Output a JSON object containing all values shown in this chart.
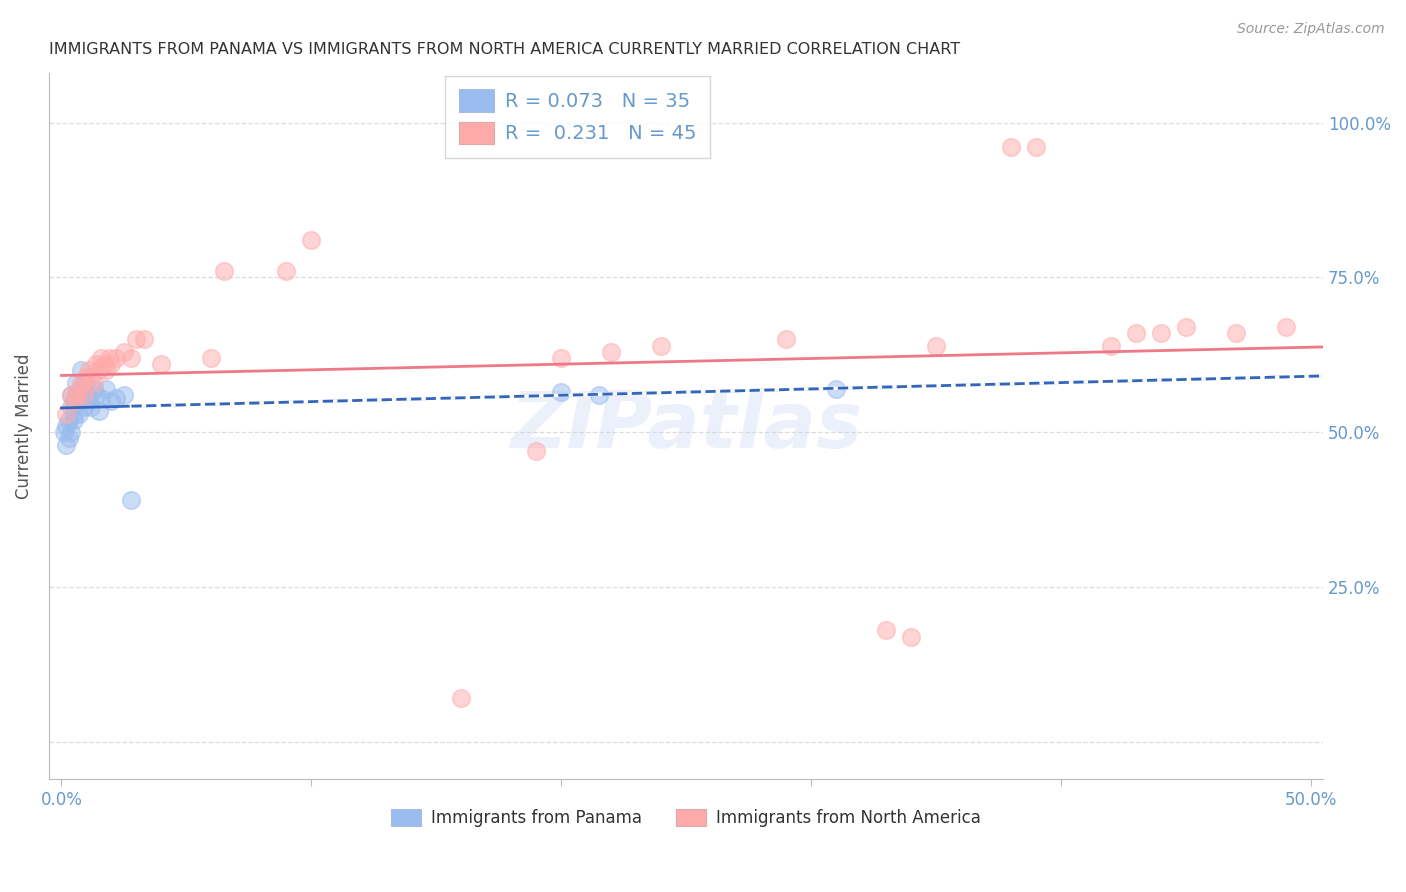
{
  "title": "IMMIGRANTS FROM PANAMA VS IMMIGRANTS FROM NORTH AMERICA CURRENTLY MARRIED CORRELATION CHART",
  "source": "Source: ZipAtlas.com",
  "ylabel_left": "Currently Married",
  "legend_r1": "0.073",
  "legend_n1": "35",
  "legend_r2": "0.231",
  "legend_n2": "45",
  "blue_color": "#99BBEE",
  "pink_color": "#FFAAAA",
  "blue_line_color": "#3366BB",
  "pink_line_color": "#EE7788",
  "axis_color": "#6699CC",
  "title_color": "#333333",
  "grid_color": "#DDDDDD",
  "background_color": "#FFFFFF",
  "watermark": "ZIPatlas",
  "blue_x": [
    0.001,
    0.002,
    0.002,
    0.003,
    0.003,
    0.004,
    0.004,
    0.004,
    0.005,
    0.005,
    0.005,
    0.006,
    0.006,
    0.007,
    0.007,
    0.008,
    0.008,
    0.009,
    0.009,
    0.01,
    0.01,
    0.011,
    0.012,
    0.013,
    0.014,
    0.015,
    0.016,
    0.018,
    0.02,
    0.022,
    0.025,
    0.028,
    0.2,
    0.215,
    0.31
  ],
  "blue_y": [
    0.5,
    0.48,
    0.51,
    0.52,
    0.49,
    0.56,
    0.54,
    0.5,
    0.53,
    0.55,
    0.52,
    0.56,
    0.58,
    0.53,
    0.555,
    0.6,
    0.56,
    0.58,
    0.54,
    0.56,
    0.58,
    0.555,
    0.54,
    0.57,
    0.56,
    0.535,
    0.555,
    0.57,
    0.55,
    0.555,
    0.56,
    0.39,
    0.565,
    0.56,
    0.57
  ],
  "pink_x": [
    0.002,
    0.004,
    0.005,
    0.006,
    0.007,
    0.008,
    0.009,
    0.01,
    0.011,
    0.012,
    0.013,
    0.014,
    0.015,
    0.016,
    0.017,
    0.018,
    0.019,
    0.02,
    0.022,
    0.025,
    0.028,
    0.03,
    0.033,
    0.04,
    0.06,
    0.065,
    0.09,
    0.1,
    0.16,
    0.19,
    0.2,
    0.22,
    0.24,
    0.29,
    0.33,
    0.34,
    0.35,
    0.38,
    0.39,
    0.42,
    0.43,
    0.44,
    0.45,
    0.47,
    0.49
  ],
  "pink_y": [
    0.53,
    0.56,
    0.55,
    0.56,
    0.57,
    0.58,
    0.56,
    0.59,
    0.6,
    0.59,
    0.58,
    0.61,
    0.6,
    0.62,
    0.61,
    0.6,
    0.62,
    0.61,
    0.62,
    0.63,
    0.62,
    0.65,
    0.65,
    0.61,
    0.62,
    0.76,
    0.76,
    0.81,
    0.07,
    0.47,
    0.62,
    0.63,
    0.64,
    0.65,
    0.18,
    0.17,
    0.64,
    0.96,
    0.96,
    0.64,
    0.66,
    0.66,
    0.67,
    0.66,
    0.67
  ],
  "xlim": [
    -0.005,
    0.505
  ],
  "ylim": [
    -0.06,
    1.08
  ],
  "yticks": [
    0.0,
    0.25,
    0.5,
    0.75,
    1.0
  ],
  "ytick_labels": [
    "",
    "25.0%",
    "50.0%",
    "75.0%",
    "100.0%"
  ]
}
